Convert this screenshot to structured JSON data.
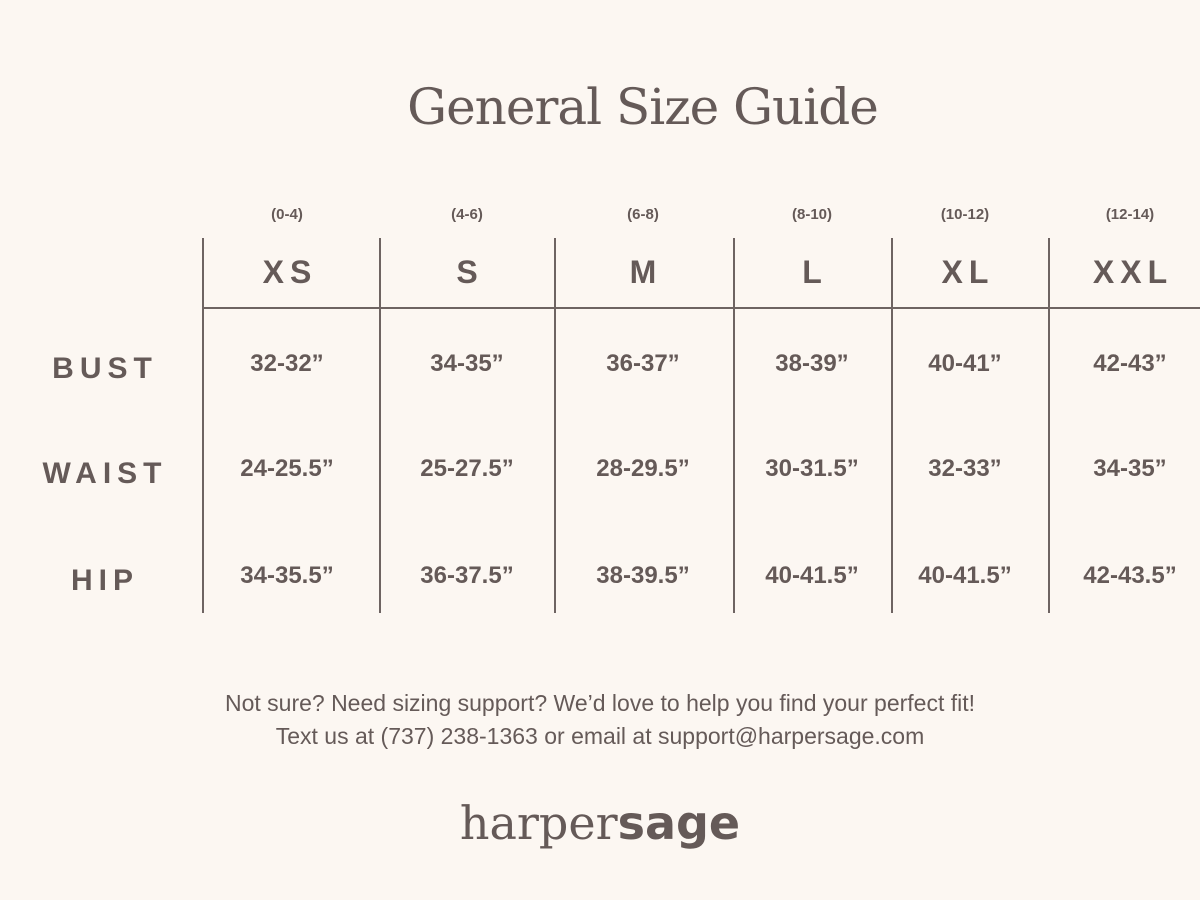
{
  "title": "General Size Guide",
  "columns": [
    {
      "size": "XS",
      "range": "(0-4)"
    },
    {
      "size": "S",
      "range": "(4-6)"
    },
    {
      "size": "M",
      "range": "(6-8)"
    },
    {
      "size": "L",
      "range": "(8-10)"
    },
    {
      "size": "XL",
      "range": "(10-12)"
    },
    {
      "size": "XXL",
      "range": "(12-14)"
    }
  ],
  "rows": [
    {
      "label": "BUST",
      "values": [
        "32-32”",
        "34-35”",
        "36-37”",
        "38-39”",
        "40-41”",
        "42-43”"
      ]
    },
    {
      "label": "WAIST",
      "values": [
        "24-25.5”",
        "25-27.5”",
        "28-29.5”",
        "30-31.5”",
        "32-33”",
        "34-35”"
      ]
    },
    {
      "label": "HIP",
      "values": [
        "34-35.5”",
        "36-37.5”",
        "38-39.5”",
        "40-41.5”",
        "40-41.5”",
        "42-43.5”"
      ]
    }
  ],
  "footer": {
    "line1": "Not sure? Need sizing support? We’d love to help you find your perfect fit!",
    "line2": "Text us at (737) 238-1363 or email at support@harpersage.com"
  },
  "logo": {
    "part1": "harper",
    "part2": "sage"
  },
  "colors": {
    "background": "#fcf7f2",
    "text": "#655a58"
  }
}
